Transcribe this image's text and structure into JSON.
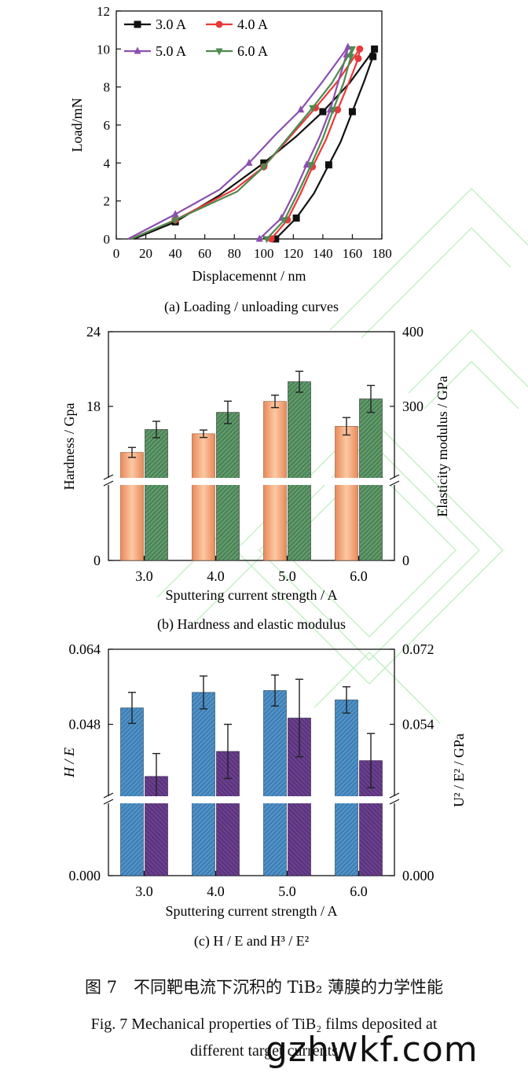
{
  "chart_data": [
    {
      "type": "line",
      "panel": "a",
      "caption": "(a) Loading / unloading curves",
      "xlabel": "Displacemennt / nm",
      "ylabel": "Load/mN",
      "xlim": [
        0,
        180
      ],
      "ylim": [
        0,
        12
      ],
      "xticks": [
        "0",
        "20",
        "40",
        "60",
        "80",
        "100",
        "120",
        "140",
        "160",
        "180"
      ],
      "yticks": [
        "0",
        "2",
        "4",
        "6",
        "8",
        "10",
        "12"
      ],
      "legend_position": "top-left",
      "series": [
        {
          "name": "3.0 A",
          "color": "#111111",
          "marker": "square",
          "loading": [
            [
              12,
              0
            ],
            [
              40,
              0.9
            ],
            [
              70,
              2.3
            ],
            [
              100,
              4.0
            ],
            [
              122,
              5.4
            ],
            [
              140,
              6.7
            ],
            [
              158,
              8.2
            ],
            [
              175,
              10.0
            ]
          ],
          "unloading": [
            [
              175,
              10.0
            ],
            [
              174,
              9.6
            ],
            [
              168,
              8.3
            ],
            [
              160,
              6.7
            ],
            [
              152,
              5.1
            ],
            [
              144,
              3.9
            ],
            [
              134,
              2.4
            ],
            [
              122,
              1.1
            ],
            [
              108,
              0
            ]
          ]
        },
        {
          "name": "4.0 A",
          "color": "#e83a3a",
          "marker": "circle",
          "loading": [
            [
              10,
              0
            ],
            [
              40,
              1.0
            ],
            [
              80,
              2.6
            ],
            [
              100,
              3.8
            ],
            [
              118,
              5.4
            ],
            [
              135,
              6.9
            ],
            [
              150,
              8.3
            ],
            [
              165,
              10.0
            ]
          ],
          "unloading": [
            [
              165,
              10.0
            ],
            [
              164,
              9.5
            ],
            [
              158,
              8.3
            ],
            [
              150,
              6.8
            ],
            [
              142,
              5.2
            ],
            [
              133,
              3.8
            ],
            [
              125,
              2.4
            ],
            [
              116,
              1.0
            ],
            [
              105,
              0
            ]
          ]
        },
        {
          "name": "5.0 A",
          "color": "#8b4fb0",
          "marker": "triangle-up",
          "loading": [
            [
              8,
              0
            ],
            [
              40,
              1.3
            ],
            [
              70,
              2.6
            ],
            [
              90,
              4.0
            ],
            [
              108,
              5.5
            ],
            [
              125,
              6.8
            ],
            [
              140,
              8.3
            ],
            [
              157,
              10.1
            ]
          ],
          "unloading": [
            [
              157,
              10.1
            ],
            [
              156,
              9.7
            ],
            [
              151,
              8.4
            ],
            [
              145,
              6.8
            ],
            [
              138,
              5.4
            ],
            [
              129,
              3.9
            ],
            [
              121,
              2.5
            ],
            [
              112,
              1.1
            ],
            [
              97,
              0
            ]
          ]
        },
        {
          "name": "6.0 A",
          "color": "#4f8a4f",
          "marker": "triangle-down",
          "loading": [
            [
              10,
              0
            ],
            [
              40,
              1.0
            ],
            [
              82,
              2.5
            ],
            [
              100,
              3.8
            ],
            [
              116,
              5.3
            ],
            [
              133,
              6.9
            ],
            [
              146,
              8.2
            ],
            [
              160,
              10.0
            ]
          ],
          "unloading": [
            [
              160,
              10.0
            ],
            [
              159,
              9.6
            ],
            [
              154,
              8.2
            ],
            [
              147,
              6.8
            ],
            [
              140,
              5.3
            ],
            [
              132,
              3.9
            ],
            [
              123,
              2.4
            ],
            [
              114,
              1.0
            ],
            [
              102,
              0
            ]
          ]
        }
      ]
    },
    {
      "type": "bar",
      "panel": "b",
      "caption": "(b) Hardness and elastic modulus",
      "xlabel": "Sputtering current strength / A",
      "ylabel_left": "Hardness / Gpa",
      "ylabel_right": "Elasticity modulus / GPa",
      "categories": [
        "3.0",
        "4.0",
        "5.0",
        "6.0"
      ],
      "yticks_left": [
        "0",
        "18",
        "24"
      ],
      "yticks_right": [
        "0",
        "300",
        "400"
      ],
      "axis_break": true,
      "series": [
        {
          "name": "Hardness",
          "axis": "left",
          "unit": "GPa",
          "color": "#f2a77a",
          "values": [
            14.3,
            15.8,
            18.4,
            16.4
          ],
          "errors": [
            0.4,
            0.3,
            0.5,
            0.7
          ]
        },
        {
          "name": "Elastic modulus",
          "axis": "right",
          "unit": "GPa",
          "color": "#5f9a6a",
          "values": [
            269,
            292,
            333,
            310
          ],
          "errors": [
            11,
            15,
            14,
            18
          ]
        }
      ]
    },
    {
      "type": "bar",
      "panel": "c",
      "caption": "(c) H / E and H³ / E²",
      "xlabel": "Sputtering current strength / A",
      "ylabel_left": "H / E",
      "ylabel_right": "U² / E² / GPa",
      "categories": [
        "3.0",
        "4.0",
        "5.0",
        "6.0"
      ],
      "yticks_left": [
        "0.000",
        "0.048",
        "0.064"
      ],
      "yticks_right": [
        "0.000",
        "0.054",
        "0.072"
      ],
      "axis_break": true,
      "series": [
        {
          "name": "H/E",
          "axis": "left",
          "color": "#4f92c9",
          "values": [
            0.0515,
            0.0548,
            0.0552,
            0.0532
          ],
          "errors": [
            0.0033,
            0.0035,
            0.0033,
            0.0028
          ]
        },
        {
          "name": "H³/E²",
          "axis": "right",
          "color": "#6a3f8f",
          "values": [
            0.0415,
            0.0475,
            0.0555,
            0.0453
          ],
          "errors": [
            0.0055,
            0.0065,
            0.0093,
            0.0065
          ]
        }
      ]
    }
  ],
  "captions": {
    "zh": "图 7　不同靶电流下沉积的 TiB₂ 薄膜的力学性能",
    "en_line1": "Fig. 7    Mechanical properties of TiB₂ films deposited at",
    "en_line2": "different target currents"
  },
  "watermark": "gzhwkf.com"
}
